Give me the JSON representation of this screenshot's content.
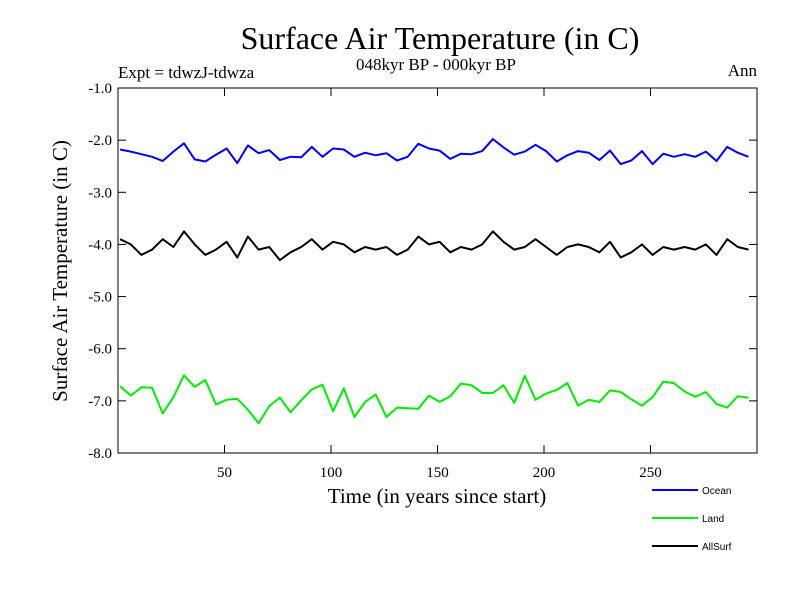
{
  "chart_data": {
    "type": "line",
    "title": "Surface Air Temperature (in C)",
    "subtitle": "048kyr BP - 000kyr BP",
    "experiment_label": "Expt = tdwzJ-tdwza",
    "period_label": "Ann",
    "xlabel": "Time (in years since start)",
    "ylabel": "Surface Air Temperature (in C)",
    "xlim": [
      0,
      300
    ],
    "ylim": [
      -8.0,
      -1.0
    ],
    "xticks": [
      50,
      100,
      150,
      200,
      250
    ],
    "xtick_labels": [
      "50",
      "100",
      "150",
      "200",
      "250"
    ],
    "yticks": [
      -8.0,
      -7.0,
      -6.0,
      -5.0,
      -4.0,
      -3.0,
      -2.0,
      -1.0
    ],
    "ytick_labels": [
      "-8.0",
      "-7.0",
      "-6.0",
      "-5.0",
      "-4.0",
      "-3.0",
      "-2.0",
      "-1.0"
    ],
    "x_start": 1,
    "x_step": 5,
    "series": [
      {
        "name": "Ocean",
        "color": "#0000ff",
        "values": [
          -2.18,
          -2.22,
          -2.27,
          -2.32,
          -2.4,
          -2.22,
          -2.06,
          -2.37,
          -2.41,
          -2.28,
          -2.16,
          -2.44,
          -2.1,
          -2.25,
          -2.19,
          -2.38,
          -2.32,
          -2.33,
          -2.13,
          -2.32,
          -2.16,
          -2.18,
          -2.32,
          -2.24,
          -2.29,
          -2.25,
          -2.39,
          -2.32,
          -2.07,
          -2.16,
          -2.2,
          -2.36,
          -2.26,
          -2.27,
          -2.21,
          -1.98,
          -2.14,
          -2.28,
          -2.22,
          -2.09,
          -2.21,
          -2.41,
          -2.29,
          -2.21,
          -2.24,
          -2.38,
          -2.2,
          -2.46,
          -2.39,
          -2.21,
          -2.46,
          -2.26,
          -2.32,
          -2.27,
          -2.32,
          -2.22,
          -2.4,
          -2.13,
          -2.24,
          -2.32
        ]
      },
      {
        "name": "Land",
        "color": "#00ee00",
        "values": [
          -6.72,
          -6.9,
          -6.74,
          -6.75,
          -7.24,
          -6.93,
          -6.51,
          -6.73,
          -6.6,
          -7.07,
          -6.98,
          -6.96,
          -7.17,
          -7.43,
          -7.1,
          -6.94,
          -7.22,
          -6.99,
          -6.78,
          -6.69,
          -7.2,
          -6.76,
          -7.31,
          -7.02,
          -6.88,
          -7.31,
          -7.13,
          -7.14,
          -7.15,
          -6.9,
          -7.02,
          -6.91,
          -6.67,
          -6.7,
          -6.85,
          -6.85,
          -6.7,
          -7.04,
          -6.52,
          -6.98,
          -6.86,
          -6.79,
          -6.66,
          -7.09,
          -6.98,
          -7.02,
          -6.8,
          -6.83,
          -6.97,
          -7.09,
          -6.93,
          -6.63,
          -6.66,
          -6.82,
          -6.92,
          -6.83,
          -7.06,
          -7.13,
          -6.91,
          -6.94
        ]
      },
      {
        "name": "AllSurf",
        "color": "#000000",
        "values": [
          -3.9,
          -4.0,
          -4.2,
          -4.1,
          -3.9,
          -4.05,
          -3.75,
          -4.0,
          -4.2,
          -4.1,
          -3.95,
          -4.25,
          -3.85,
          -4.1,
          -4.05,
          -4.3,
          -4.15,
          -4.05,
          -3.9,
          -4.1,
          -3.95,
          -4.0,
          -4.15,
          -4.05,
          -4.1,
          -4.05,
          -4.2,
          -4.1,
          -3.85,
          -4.0,
          -3.95,
          -4.15,
          -4.05,
          -4.1,
          -4.0,
          -3.75,
          -3.95,
          -4.1,
          -4.05,
          -3.9,
          -4.05,
          -4.2,
          -4.05,
          -4.0,
          -4.05,
          -4.15,
          -3.95,
          -4.25,
          -4.15,
          -4.0,
          -4.2,
          -4.05,
          -4.1,
          -4.05,
          -4.1,
          -4.0,
          -4.2,
          -3.9,
          -4.05,
          -4.1
        ]
      }
    ]
  }
}
